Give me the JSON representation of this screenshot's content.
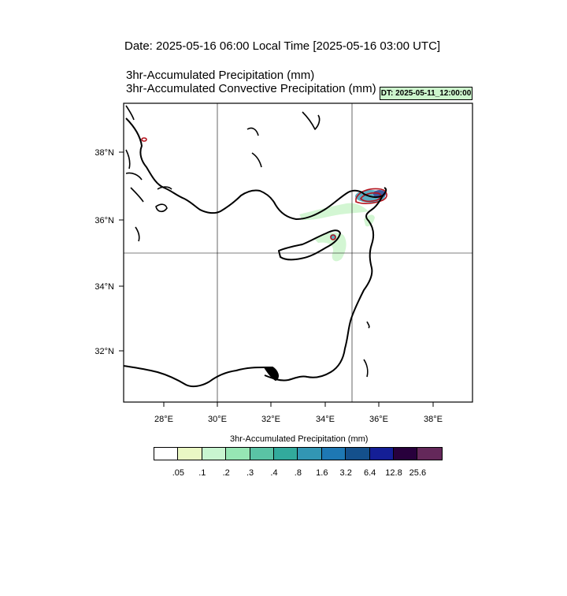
{
  "header": {
    "date_line": "Date: 2025-05-16  06:00 Local Time [2025-05-16  03:00 UTC]",
    "title_line1": "3hr-Accumulated Precipitation   (mm)",
    "title_line2": "3hr-Accumulated Convective Precipitation   (mm)",
    "dt_label": "DT: 2025-05-11_12:00:00"
  },
  "map": {
    "region": "Eastern Mediterranean",
    "lon_range": [
      26.6,
      39.4
    ],
    "lat_range": [
      30.4,
      39.4
    ],
    "lat_ticks": [
      "38°N",
      "36°N",
      "34°N",
      "32°N"
    ],
    "lon_ticks": [
      "28°E",
      "30°E",
      "32°E",
      "34°E",
      "36°E",
      "38°E"
    ],
    "gridlines_lon": [
      30,
      35
    ],
    "gridlines_lat": [
      35
    ],
    "precip_colors": {
      "light": "#ccf5cc",
      "mid": "#3fa0b8",
      "heavy": "#1e3c8c"
    },
    "convective_contour_color": "#b4141e"
  },
  "colorbar": {
    "title": "3hr-Accumulated Precipitation   (mm)",
    "colors": [
      "#ffffff",
      "#eaf8c4",
      "#c8f5d0",
      "#96e6b4",
      "#5ac3a5",
      "#32aa9c",
      "#3296b4",
      "#1e78b4",
      "#14508c",
      "#141e96",
      "#28003c",
      "#64285a"
    ],
    "labels": [
      ".05",
      ".1",
      ".2",
      ".3",
      ".4",
      ".8",
      "1.6",
      "3.2",
      "6.4",
      "12.8",
      "25.6"
    ]
  }
}
